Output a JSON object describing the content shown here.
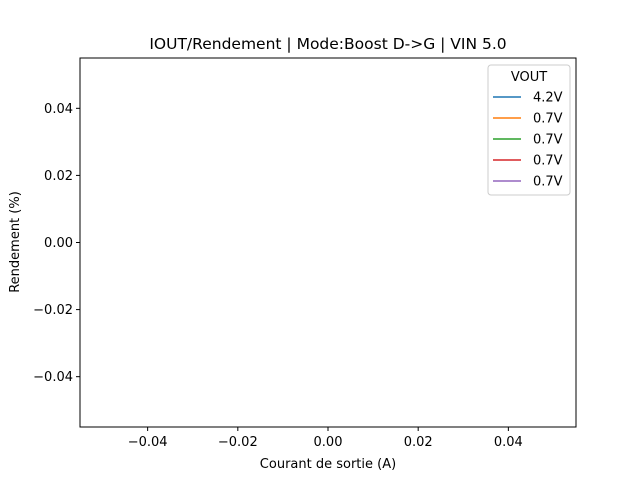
{
  "chart_data": {
    "type": "line",
    "title": "IOUT/Rendement | Mode:Boost D->G | VIN 5.0",
    "xlabel": "Courant de sortie (A)",
    "ylabel": "Rendement (%)",
    "xlim": [
      -0.055,
      0.055
    ],
    "ylim": [
      -0.055,
      0.055
    ],
    "x_ticks": [
      -0.04,
      -0.02,
      0.0,
      0.02,
      0.04
    ],
    "x_tick_labels": [
      "−0.04",
      "−0.02",
      "0.00",
      "0.02",
      "0.04"
    ],
    "y_ticks": [
      0.04,
      0.02,
      0.0,
      -0.02,
      -0.04
    ],
    "y_tick_labels": [
      "0.04",
      "0.02",
      "0.00",
      "−0.02",
      "−0.04"
    ],
    "grid": false,
    "legend": {
      "title": "VOUT",
      "placement": "top-right"
    },
    "series": [
      {
        "name": "4.2V",
        "color": "#1f77b4",
        "x": [],
        "y": []
      },
      {
        "name": "0.7V",
        "color": "#ff7f0e",
        "x": [],
        "y": []
      },
      {
        "name": "0.7V",
        "color": "#2ca02c",
        "x": [],
        "y": []
      },
      {
        "name": "0.7V",
        "color": "#d62728",
        "x": [],
        "y": []
      },
      {
        "name": "0.7V",
        "color": "#9467bd",
        "x": [],
        "y": []
      }
    ]
  }
}
